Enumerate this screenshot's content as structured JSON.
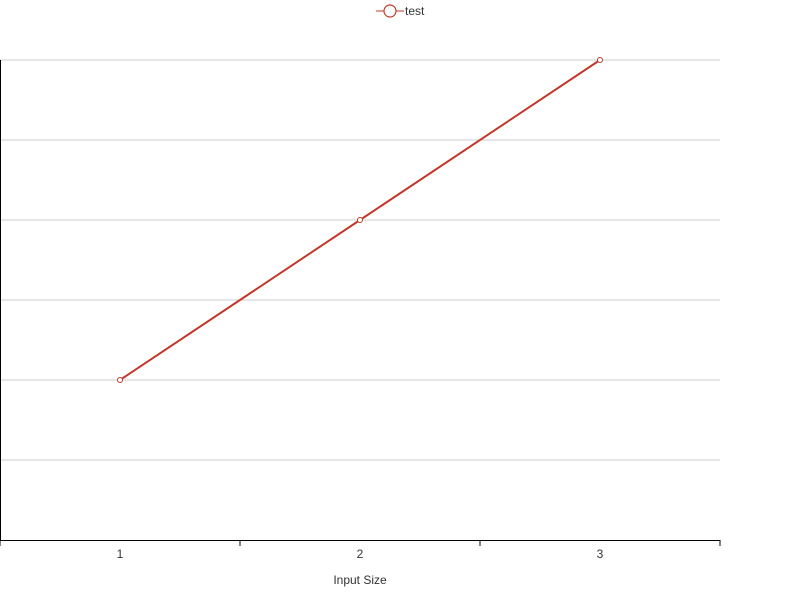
{
  "chart_data": {
    "type": "line",
    "x": [
      1,
      2,
      3
    ],
    "series": [
      {
        "name": "test",
        "values": [
          2,
          4,
          6
        ],
        "color": "#c0392b"
      }
    ],
    "xlabel": "Input Size",
    "ylabel": "",
    "x_tick_labels": [
      "1",
      "2",
      "3"
    ],
    "xlim": [
      0.5,
      3.5
    ],
    "ylim": [
      0,
      6
    ],
    "y_gridlines": [
      1,
      2,
      3,
      4,
      5,
      6
    ],
    "grid": true,
    "legend": "top-center"
  }
}
